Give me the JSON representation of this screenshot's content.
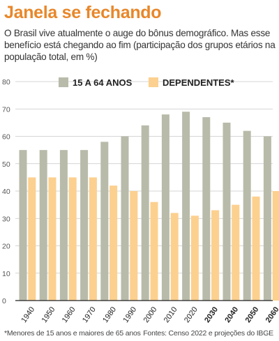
{
  "title": "Janela se fechando",
  "subtitle": "O Brasil vive atualmente o auge do bônus demográfico. Mas esse benefício está chegando ao fim (participação dos grupos etários na população total, em %)",
  "footnote": "*Menores de 15 anos e maiores de 65 anos",
  "source": "Fontes: Censo 2022 e projeções do IBGE",
  "colors": {
    "title": "#e8872a",
    "series_working_age": "#b9bbaa",
    "series_dependents": "#fcd08f",
    "grid": "#c8c8c8",
    "axis": "#222222"
  },
  "chart_data": {
    "type": "bar",
    "categories": [
      "1940",
      "1950",
      "1960",
      "1970",
      "1980",
      "1990",
      "2000",
      "2010",
      "2020",
      "2030",
      "2040",
      "2050",
      "2060"
    ],
    "bold_categories": [
      "2030",
      "2040",
      "2050",
      "2060"
    ],
    "series": [
      {
        "name": "15 A 64 ANOS",
        "values": [
          55,
          55,
          55,
          55,
          58,
          60,
          64,
          68,
          69,
          67,
          65,
          62,
          60
        ]
      },
      {
        "name": "DEPENDENTES*",
        "values": [
          45,
          45,
          45,
          45,
          42,
          40,
          36,
          32,
          31,
          33,
          35,
          38,
          40
        ]
      }
    ],
    "ylim": [
      0,
      80
    ],
    "yticks": [
      0,
      10,
      20,
      30,
      40,
      50,
      60,
      70,
      80
    ],
    "grid": true,
    "legend_position": "top"
  }
}
